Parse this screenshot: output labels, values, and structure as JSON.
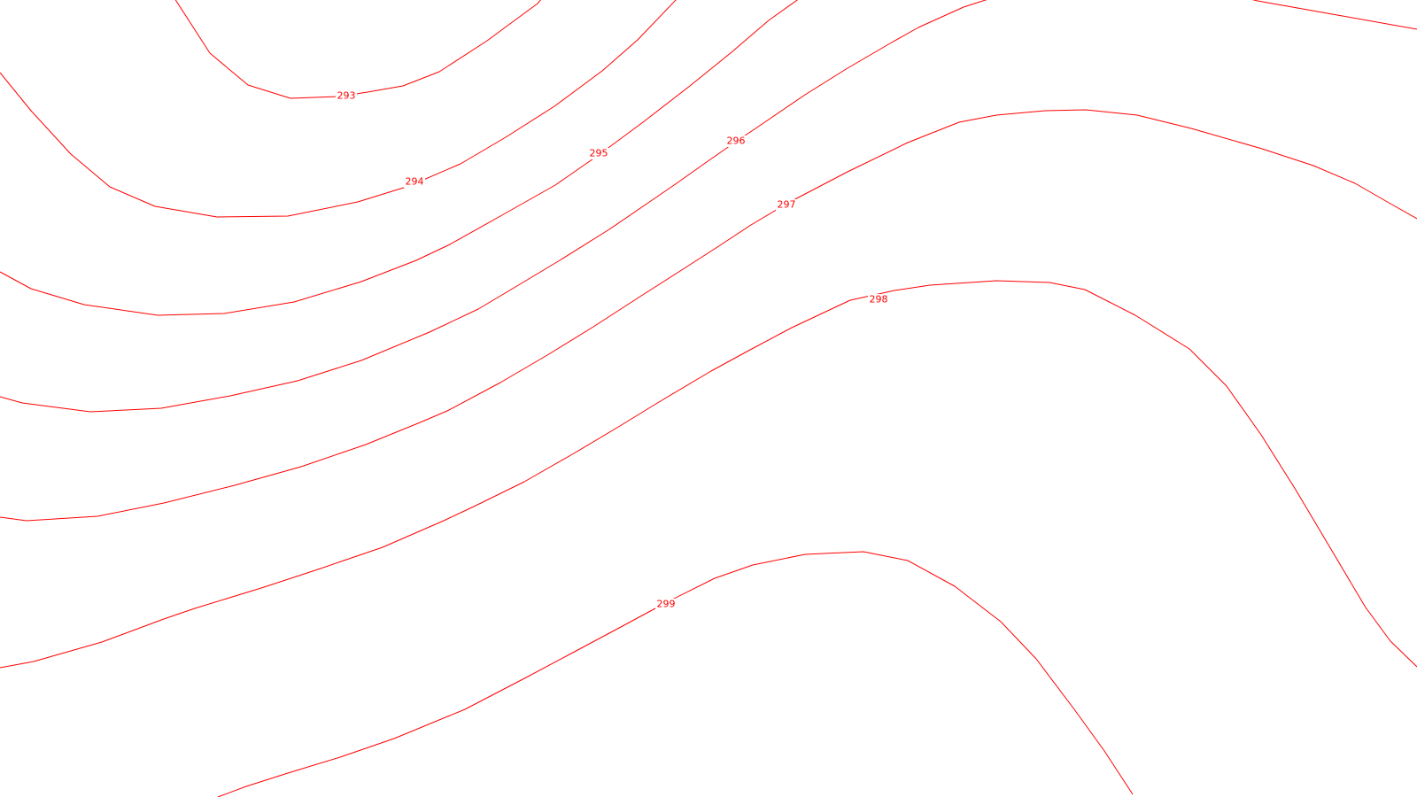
{
  "map": {
    "contour_color": "#ff0000",
    "background": "#ffffff",
    "contours": [
      {
        "level": "293",
        "label": "293"
      },
      {
        "level": "294",
        "label": "294"
      },
      {
        "level": "295",
        "label": "295"
      },
      {
        "level": "296",
        "label": "296"
      },
      {
        "level": "297",
        "label": "297"
      },
      {
        "level": "298",
        "label": "298"
      },
      {
        "level": "299",
        "label": "299"
      }
    ]
  }
}
